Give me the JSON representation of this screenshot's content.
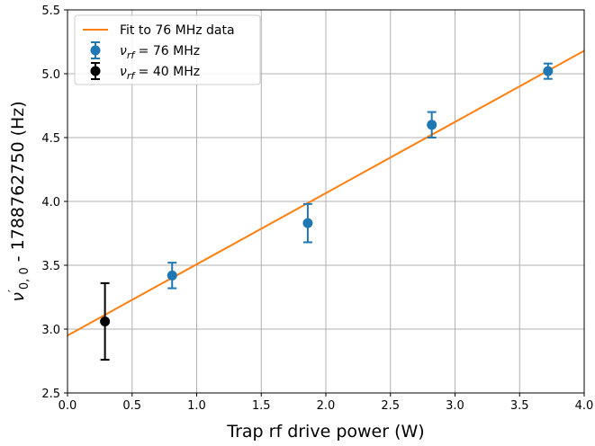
{
  "chart_data": {
    "type": "scatter",
    "xlabel": "Trap rf drive power (W)",
    "ylabel": "ν′0,0 - 1788762750 (Hz)",
    "ylabel_parts": {
      "symbol": "ν",
      "prime": "′",
      "sub": "0, 0",
      "rest": " - 1788762750 (Hz)"
    },
    "xlim": [
      0.0,
      4.0
    ],
    "ylim": [
      2.5,
      5.5
    ],
    "x_ticks": [
      "0.0",
      "0.5",
      "1.0",
      "1.5",
      "2.0",
      "2.5",
      "3.0",
      "3.5",
      "4.0"
    ],
    "y_ticks": [
      "2.5",
      "3.0",
      "3.5",
      "4.0",
      "4.5",
      "5.0",
      "5.5"
    ],
    "x_tick_values": [
      0.0,
      0.5,
      1.0,
      1.5,
      2.0,
      2.5,
      3.0,
      3.5,
      4.0
    ],
    "y_tick_values": [
      2.5,
      3.0,
      3.5,
      4.0,
      4.5,
      5.0,
      5.5
    ],
    "grid": true,
    "legend_position": "top-left",
    "series": [
      {
        "name": "νrf = 76 MHz",
        "kind": "errorbar",
        "color": "#1f77b4",
        "x": [
          0.81,
          1.86,
          2.82,
          3.72
        ],
        "y": [
          3.42,
          3.83,
          4.6,
          5.02
        ],
        "yerr": [
          0.1,
          0.15,
          0.1,
          0.06
        ]
      },
      {
        "name": "νrf = 40 MHz",
        "kind": "errorbar",
        "color": "#000000",
        "x": [
          0.29
        ],
        "y": [
          3.06
        ],
        "yerr": [
          0.3
        ]
      },
      {
        "name": "Fit to 76 MHz data",
        "kind": "line",
        "color": "#ff7f0e",
        "x": [
          0.0,
          4.0
        ],
        "y": [
          2.95,
          5.18
        ]
      }
    ],
    "legend": [
      {
        "label": "Fit to 76 MHz data",
        "kind": "line",
        "color": "#ff7f0e"
      },
      {
        "label_symbol": "ν",
        "label_sub": "rf",
        "label_rest": " = 76 MHz",
        "kind": "errorbar",
        "color": "#1f77b4"
      },
      {
        "label_symbol": "ν",
        "label_sub": "rf",
        "label_rest": " = 40 MHz",
        "kind": "errorbar",
        "color": "#000000"
      }
    ]
  }
}
